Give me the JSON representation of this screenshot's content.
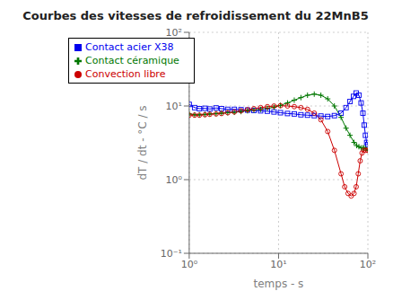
{
  "chart_data": {
    "type": "line",
    "title": "Courbes des vitesses de refroidissement du 22MnB5",
    "xlabel": "temps - s",
    "ylabel": "dT / dt - °C / s",
    "log": true,
    "grid": true,
    "legend": "upper left",
    "xlim": [
      1,
      100
    ],
    "ylim": [
      0.1,
      100
    ],
    "xticks": [
      {
        "value": 1,
        "label": "10⁰"
      },
      {
        "value": 10,
        "label": "10¹"
      },
      {
        "value": 100,
        "label": "10²"
      }
    ],
    "yticks": [
      {
        "value": 0.1,
        "label": "10⁻¹"
      },
      {
        "value": 1,
        "label": "10⁰"
      },
      {
        "value": 10,
        "label": "10¹"
      },
      {
        "value": 100,
        "label": "10²"
      }
    ],
    "series": [
      {
        "name": "Contact acier X38",
        "color": "#0000ee",
        "marker": "square",
        "line_style": "solid",
        "x": [
          1.0,
          1.15,
          1.3,
          1.5,
          1.7,
          2.0,
          2.3,
          2.7,
          3.2,
          3.8,
          4.5,
          5.3,
          6.3,
          7.5,
          8.9,
          10.5,
          12.6,
          15.0,
          17.8,
          21.1,
          25.1,
          29.8,
          35.5,
          42.2,
          50.1,
          57.0,
          63.1,
          69.0,
          74.0,
          79.4,
          84.0,
          88.0,
          91.0,
          94.0,
          97.0,
          100.0
        ],
        "values": [
          10.5,
          9.5,
          9.2,
          9.3,
          9.1,
          9.4,
          9.2,
          9.0,
          9.0,
          8.9,
          8.8,
          8.7,
          8.6,
          8.5,
          8.3,
          8.1,
          7.9,
          7.8,
          7.6,
          7.5,
          7.4,
          7.3,
          7.2,
          7.4,
          8.0,
          9.5,
          11.5,
          13.5,
          15.0,
          14.0,
          11.0,
          8.0,
          5.5,
          4.0,
          3.2,
          3.0
        ]
      },
      {
        "name": "Contact céramique",
        "color": "#007700",
        "marker": "plus",
        "line_style": "solid",
        "x": [
          1.0,
          1.15,
          1.3,
          1.5,
          1.7,
          2.0,
          2.3,
          2.7,
          3.2,
          3.8,
          4.5,
          5.3,
          6.3,
          7.5,
          8.9,
          10.5,
          12.6,
          15.0,
          17.8,
          21.1,
          25.1,
          29.8,
          35.5,
          42.2,
          50.1,
          57.0,
          63.1,
          70.0,
          75.0,
          79.4,
          84.0,
          88.0,
          91.0,
          95.0,
          100.0
        ],
        "values": [
          7.8,
          7.6,
          7.6,
          7.7,
          7.8,
          7.9,
          8.0,
          8.1,
          8.2,
          8.4,
          8.6,
          8.8,
          9.0,
          9.3,
          9.6,
          10.2,
          11.0,
          12.0,
          13.0,
          14.0,
          14.5,
          14.0,
          12.5,
          10.0,
          7.0,
          5.0,
          4.0,
          3.2,
          2.9,
          2.8,
          2.7,
          2.7,
          2.7,
          2.6,
          2.5
        ]
      },
      {
        "name": "Convection libre",
        "color": "#cc0000",
        "marker": "circle",
        "line_style": "solid",
        "x": [
          1.0,
          1.15,
          1.3,
          1.5,
          1.7,
          2.0,
          2.3,
          2.7,
          3.2,
          3.8,
          4.5,
          5.3,
          6.3,
          7.5,
          8.9,
          10.5,
          12.6,
          15.0,
          17.8,
          21.1,
          25.1,
          29.8,
          35.5,
          42.2,
          50.1,
          55.0,
          60.0,
          65.0,
          70.0,
          74.0,
          78.0,
          82.0,
          86.0,
          90.0,
          95.0,
          100.0
        ],
        "values": [
          7.5,
          7.5,
          7.5,
          7.6,
          7.7,
          7.8,
          7.9,
          8.1,
          8.3,
          8.6,
          8.9,
          9.2,
          9.5,
          9.8,
          10.0,
          10.1,
          10.0,
          9.8,
          9.5,
          9.0,
          8.0,
          6.5,
          4.5,
          2.5,
          1.2,
          0.8,
          0.65,
          0.6,
          0.65,
          0.8,
          1.2,
          1.8,
          2.3,
          2.5,
          2.5,
          2.5
        ]
      }
    ]
  }
}
